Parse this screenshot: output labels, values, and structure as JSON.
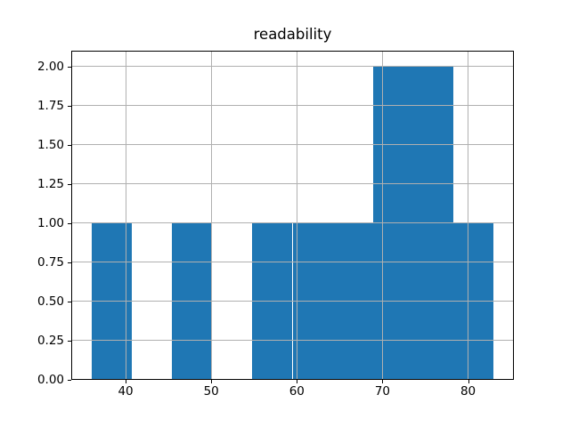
{
  "figure": {
    "background": "#ffffff"
  },
  "chart_data": {
    "type": "bar",
    "chart_kind": "histogram",
    "title": "readability",
    "xlabel": "",
    "ylabel": "",
    "bin_edges": [
      36.0,
      40.7,
      45.4,
      50.1,
      54.8,
      59.5,
      64.2,
      68.9,
      73.6,
      78.3,
      83.0
    ],
    "counts": [
      1,
      0,
      1,
      0,
      1,
      1,
      1,
      2,
      2,
      1
    ],
    "xlim": [
      33.65,
      85.35
    ],
    "ylim": [
      0,
      2.1
    ],
    "x_ticks": [
      40,
      50,
      60,
      70,
      80
    ],
    "x_tick_labels": [
      "40",
      "50",
      "60",
      "70",
      "80"
    ],
    "y_ticks": [
      0,
      0.25,
      0.5,
      0.75,
      1,
      1.25,
      1.5,
      1.75,
      2
    ],
    "y_tick_labels": [
      "0.00",
      "0.25",
      "0.50",
      "0.75",
      "1.00",
      "1.25",
      "1.50",
      "1.75",
      "2.00"
    ],
    "grid": true,
    "grid_above_bars": true,
    "legend": null,
    "bar_color": "#1f77b4",
    "grid_color": "#b0b0b0",
    "spine_color": "#000000",
    "tick_color": "#000000",
    "text_color": "#000000"
  }
}
